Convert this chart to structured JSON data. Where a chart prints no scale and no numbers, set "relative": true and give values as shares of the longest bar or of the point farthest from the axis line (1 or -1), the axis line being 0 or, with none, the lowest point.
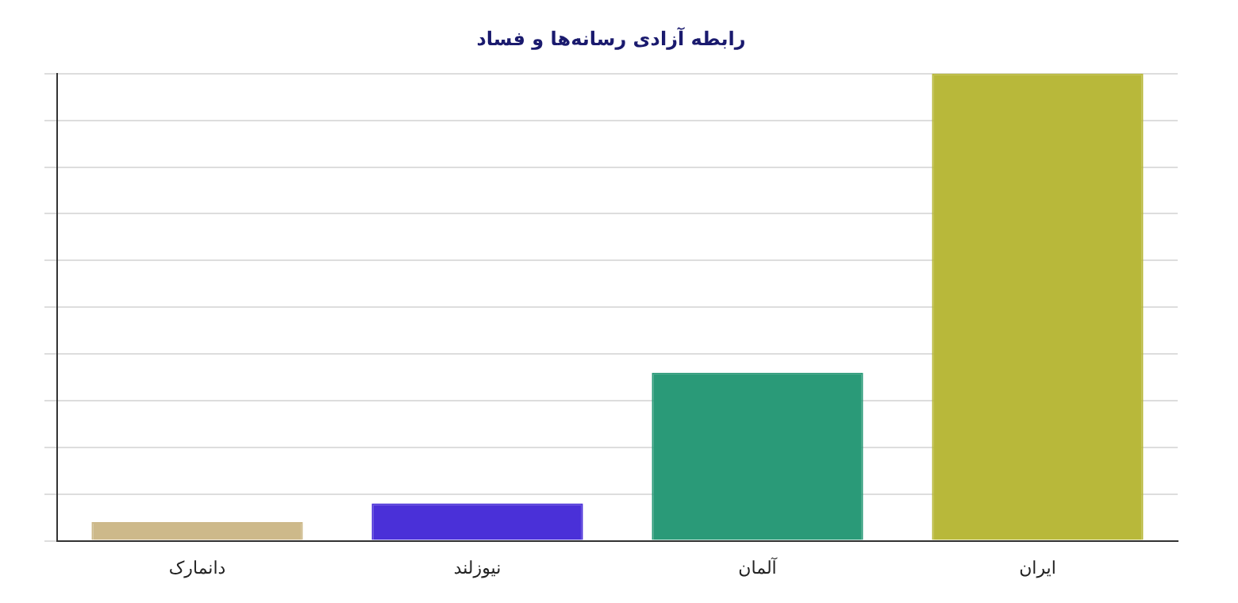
{
  "chart_data": {
    "type": "bar",
    "title": "رابطه آزادی رسانه‌ها و فساد",
    "categories": [
      "دانمارک",
      "نیوزلند",
      "آلمان",
      "ایران"
    ],
    "values": [
      0.04,
      0.08,
      0.36,
      1
    ],
    "colors": [
      "#cdb98a",
      "#4a30d8",
      "#2a9a78",
      "#b8b83a"
    ],
    "relative": true,
    "grid": "y"
  }
}
